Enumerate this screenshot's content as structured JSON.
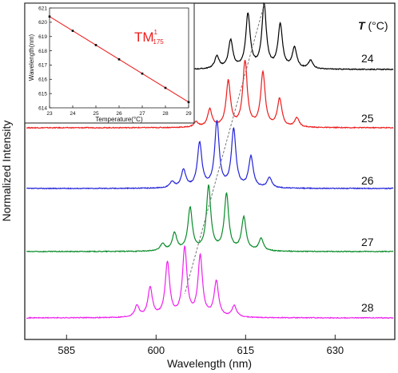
{
  "chart_data": [
    {
      "type": "line",
      "title": "",
      "xlabel": "Wavelength (nm)",
      "ylabel": "Normalized Intensity",
      "xlim": [
        578,
        640
      ],
      "x_ticks": [
        585,
        600,
        615,
        630
      ],
      "legend_title_italic": "T",
      "legend_title_rest": " (°C)",
      "peak_trend_line": "dashed",
      "series": [
        {
          "name": "24",
          "color": "#000000",
          "peaks": [
            [
              610.2,
              0.12
            ],
            [
              612.5,
              0.27
            ],
            [
              615.4,
              0.52
            ],
            [
              618.1,
              0.61
            ],
            [
              620.8,
              0.42
            ],
            [
              623.2,
              0.2
            ],
            [
              625.9,
              0.08
            ]
          ]
        },
        {
          "name": "25",
          "color": "#ee1c1c",
          "peaks": [
            [
              606.7,
              0.05
            ],
            [
              609.0,
              0.17
            ],
            [
              612.1,
              0.44
            ],
            [
              614.9,
              0.63
            ],
            [
              617.9,
              0.52
            ],
            [
              620.7,
              0.27
            ],
            [
              623.6,
              0.09
            ]
          ]
        },
        {
          "name": "26",
          "color": "#2323d8",
          "peaks": [
            [
              602.7,
              0.06
            ],
            [
              604.6,
              0.17
            ],
            [
              607.3,
              0.43
            ],
            [
              610.2,
              0.63
            ],
            [
              613.0,
              0.56
            ],
            [
              615.9,
              0.3
            ],
            [
              619.0,
              0.1
            ]
          ]
        },
        {
          "name": "27",
          "color": "#0a8c2a",
          "peaks": [
            [
              601.1,
              0.07
            ],
            [
              603.1,
              0.17
            ],
            [
              605.7,
              0.41
            ],
            [
              608.8,
              0.62
            ],
            [
              611.8,
              0.54
            ],
            [
              614.7,
              0.32
            ],
            [
              617.6,
              0.12
            ]
          ]
        },
        {
          "name": "28",
          "color": "#ee22ee",
          "peaks": [
            [
              596.8,
              0.11
            ],
            [
              599.0,
              0.28
            ],
            [
              601.9,
              0.52
            ],
            [
              604.8,
              0.66
            ],
            [
              607.4,
              0.58
            ],
            [
              610.1,
              0.34
            ],
            [
              613.1,
              0.11
            ]
          ]
        }
      ]
    },
    {
      "type": "scatter",
      "title": "TM",
      "title_sup": "1",
      "title_sub": "175",
      "xlabel": "Temperature(°C)",
      "ylabel": "Wavelength(nm)",
      "xlim": [
        23,
        29
      ],
      "ylim": [
        614,
        621
      ],
      "x_ticks": [
        23,
        24,
        25,
        26,
        27,
        28,
        29
      ],
      "y_ticks": [
        614,
        615,
        616,
        617,
        618,
        619,
        620,
        621
      ],
      "x": [
        23,
        24,
        25,
        26,
        27,
        28,
        29
      ],
      "y": [
        620.4,
        619.4,
        618.4,
        617.4,
        616.4,
        615.4,
        614.4
      ],
      "fit_line_color": "#ee1c1c",
      "marker_color": "#000000"
    }
  ]
}
